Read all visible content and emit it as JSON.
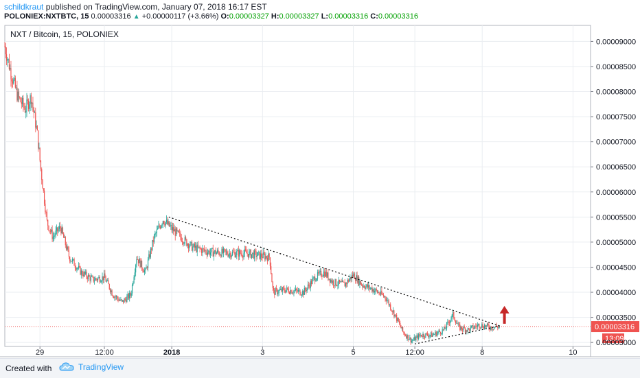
{
  "header": {
    "author": "schildkraut",
    "published_text": "published on TradingView.com, January 07, 2018 16:17 EST",
    "symbol_info": "POLONIEX:NXTBTC, 15",
    "last_price": "0.00003316",
    "change": "+0.00000117 (+3.66%)",
    "o_label": "O:",
    "o_value": "0.00003327",
    "h_label": "H:",
    "h_value": "0.00003327",
    "l_label": "L:",
    "l_value": "0.00003316",
    "c_label": "C:",
    "c_value": "0.00003316"
  },
  "chart_data": {
    "type": "candlestick",
    "title": "NXT / Bitcoin, 15, POLONIEX",
    "ylim": [
      2.92e-05,
      9.32e-05
    ],
    "y_ticks": [
      "0.00009000",
      "0.00008500",
      "0.00008000",
      "0.00007500",
      "0.00007000",
      "0.00006500",
      "0.00006000",
      "0.00005500",
      "0.00005000",
      "0.00004500",
      "0.00004000",
      "0.00003500",
      "0.00003000"
    ],
    "y_tick_values": [
      9e-05,
      8.5e-05,
      8e-05,
      7.5e-05,
      7e-05,
      6.5e-05,
      6e-05,
      5.5e-05,
      5e-05,
      4.5e-05,
      4e-05,
      3.5e-05,
      3e-05
    ],
    "x_ticks": [
      "29",
      "12:00",
      "2018",
      "3",
      "5",
      "12:00",
      "8",
      "10"
    ],
    "x_tick_positions": [
      0.06,
      0.17,
      0.285,
      0.44,
      0.595,
      0.7,
      0.815,
      0.97
    ],
    "price_series": [
      [
        0.0,
        8.9e-05
      ],
      [
        0.01,
        8.4e-05
      ],
      [
        0.022,
        7.9e-05
      ],
      [
        0.035,
        7.65e-05
      ],
      [
        0.045,
        7.9e-05
      ],
      [
        0.055,
        7.2e-05
      ],
      [
        0.062,
        6.4e-05
      ],
      [
        0.072,
        5.4e-05
      ],
      [
        0.082,
        5.1e-05
      ],
      [
        0.095,
        5.3e-05
      ],
      [
        0.11,
        4.7e-05
      ],
      [
        0.13,
        4.4e-05
      ],
      [
        0.15,
        4.25e-05
      ],
      [
        0.17,
        4.3e-05
      ],
      [
        0.185,
        3.95e-05
      ],
      [
        0.2,
        3.8e-05
      ],
      [
        0.215,
        3.95e-05
      ],
      [
        0.225,
        4.7e-05
      ],
      [
        0.24,
        4.4e-05
      ],
      [
        0.255,
        5.1e-05
      ],
      [
        0.27,
        5.45e-05
      ],
      [
        0.282,
        5.3e-05
      ],
      [
        0.3,
        5.1e-05
      ],
      [
        0.32,
        4.9e-05
      ],
      [
        0.35,
        4.8e-05
      ],
      [
        0.38,
        4.78e-05
      ],
      [
        0.41,
        4.78e-05
      ],
      [
        0.452,
        4.7e-05
      ],
      [
        0.458,
        4e-05
      ],
      [
        0.48,
        4.05e-05
      ],
      [
        0.51,
        4e-05
      ],
      [
        0.53,
        4.3e-05
      ],
      [
        0.545,
        4.4e-05
      ],
      [
        0.56,
        4.2e-05
      ],
      [
        0.58,
        4.15e-05
      ],
      [
        0.595,
        4.35e-05
      ],
      [
        0.61,
        4.15e-05
      ],
      [
        0.63,
        4.05e-05
      ],
      [
        0.65,
        3.9e-05
      ],
      [
        0.668,
        3.5e-05
      ],
      [
        0.68,
        3.2e-05
      ],
      [
        0.695,
        3.03e-05
      ],
      [
        0.71,
        3.15e-05
      ],
      [
        0.73,
        3.15e-05
      ],
      [
        0.75,
        3.25e-05
      ],
      [
        0.765,
        3.55e-05
      ],
      [
        0.775,
        3.3e-05
      ],
      [
        0.79,
        3.25e-05
      ],
      [
        0.81,
        3.35e-05
      ],
      [
        0.83,
        3.3e-05
      ],
      [
        0.845,
        3.32e-05
      ]
    ],
    "trendlines": [
      {
        "from": [
          0.28,
          5.5e-05
        ],
        "to": [
          0.845,
          3.33e-05
        ]
      },
      {
        "from": [
          0.7,
          2.97e-05
        ],
        "to": [
          0.845,
          3.33e-05
        ]
      }
    ],
    "current_price": 3.316e-05,
    "current_price_label": "0.00003316",
    "countdown_label": "13:09",
    "annotation": "up-arrow",
    "colors": {
      "up": "#26a69a",
      "down": "#ef5350",
      "trend": "#000000",
      "arrow": "#c62828",
      "price_line": "#ef5350",
      "grid": "#eaedf1"
    }
  },
  "footer": {
    "created_text": "Created with",
    "brand": "TradingView"
  }
}
